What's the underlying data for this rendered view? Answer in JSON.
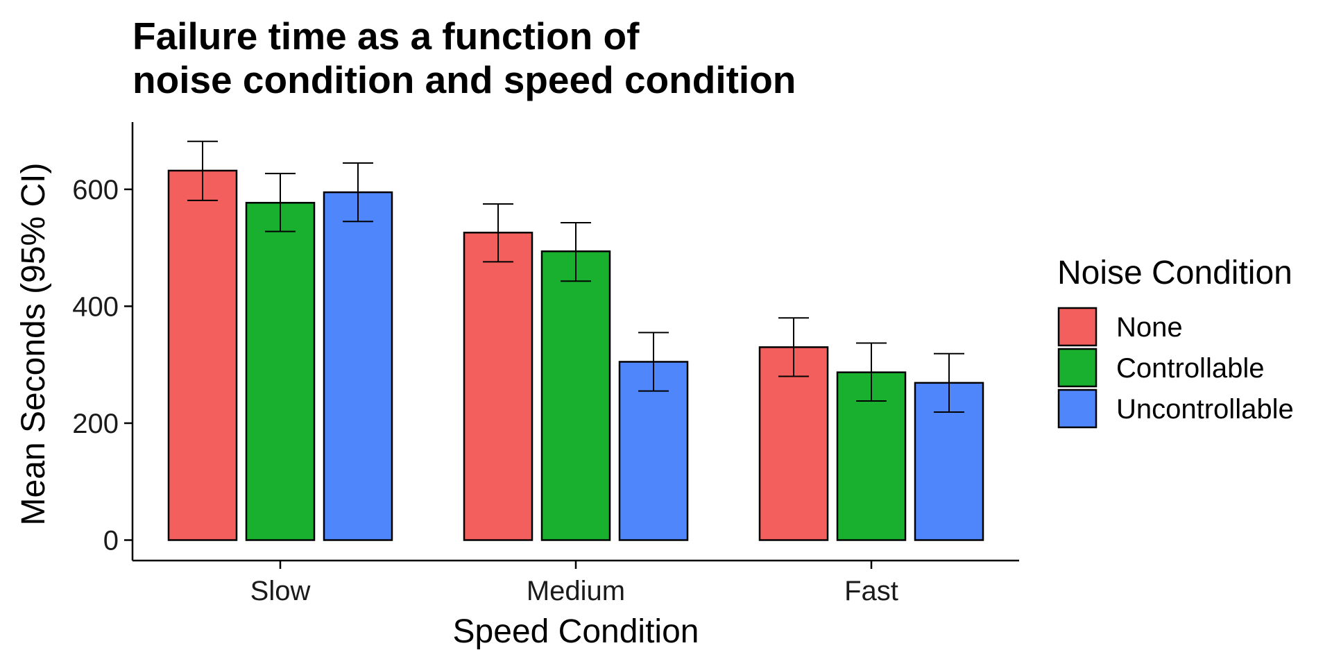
{
  "chart_data": {
    "type": "bar",
    "title_lines": [
      "Failure time as a function of",
      "noise condition and speed condition"
    ],
    "xlabel": "Speed Condition",
    "ylabel": "Mean Seconds (95% CI)",
    "categories": [
      "Slow",
      "Medium",
      "Fast"
    ],
    "ylim": [
      -35,
      715
    ],
    "yticks": [
      0,
      200,
      400,
      600
    ],
    "grid": false,
    "legend": {
      "title": "Noise Condition",
      "position": "right"
    },
    "series": [
      {
        "name": "None",
        "color": "#F25F5C",
        "values": [
          632,
          526,
          330
        ],
        "ci_low": [
          581,
          476,
          280
        ],
        "ci_high": [
          682,
          575,
          380
        ]
      },
      {
        "name": "Controllable",
        "color": "#18B02E",
        "values": [
          577,
          494,
          287
        ],
        "ci_low": [
          528,
          443,
          238
        ],
        "ci_high": [
          627,
          543,
          337
        ]
      },
      {
        "name": "Uncontrollable",
        "color": "#4F86FC",
        "values": [
          595,
          305,
          269
        ],
        "ci_low": [
          545,
          255,
          219
        ],
        "ci_high": [
          645,
          355,
          319
        ]
      }
    ]
  }
}
